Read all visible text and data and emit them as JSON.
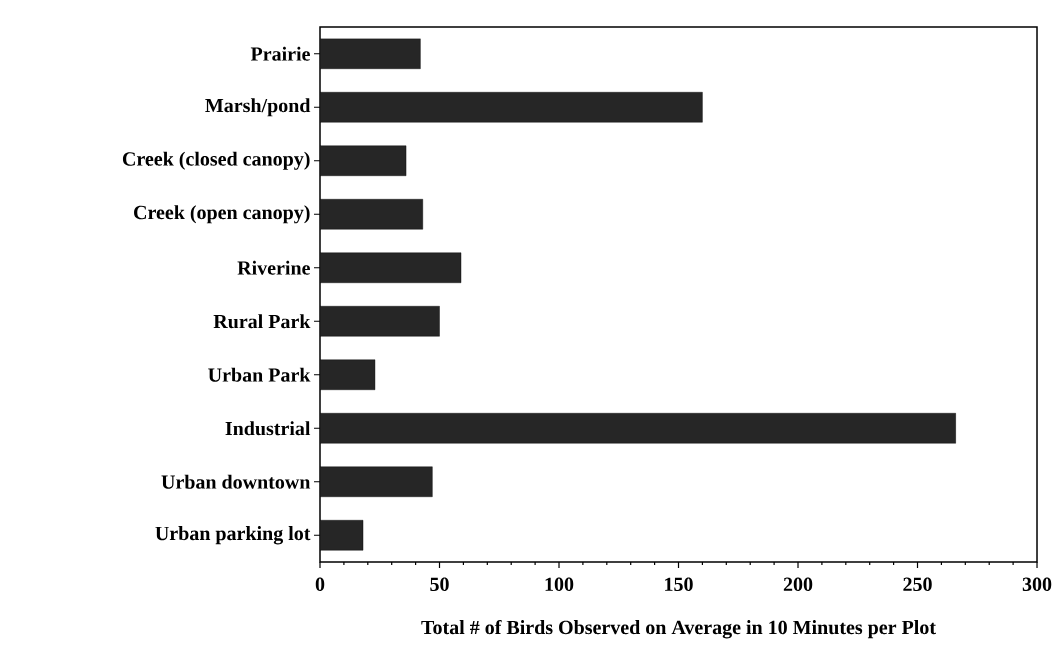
{
  "chart_data": {
    "type": "bar",
    "orientation": "horizontal",
    "categories": [
      "Prairie",
      "Marsh/pond",
      "Creek (closed canopy)",
      "Creek (open canopy)",
      "Riverine",
      "Rural Park",
      "Urban Park",
      "Industrial",
      "Urban downtown",
      "Urban parking lot"
    ],
    "values": [
      42,
      160,
      36,
      43,
      59,
      50,
      23,
      266,
      47,
      18
    ],
    "color": "#262626",
    "xlabel": "Total # of Birds Observed on Average in 10 Minutes per Plot",
    "xlim": [
      0,
      300
    ],
    "xticks": [
      0,
      50,
      100,
      150,
      200,
      250,
      300
    ]
  }
}
